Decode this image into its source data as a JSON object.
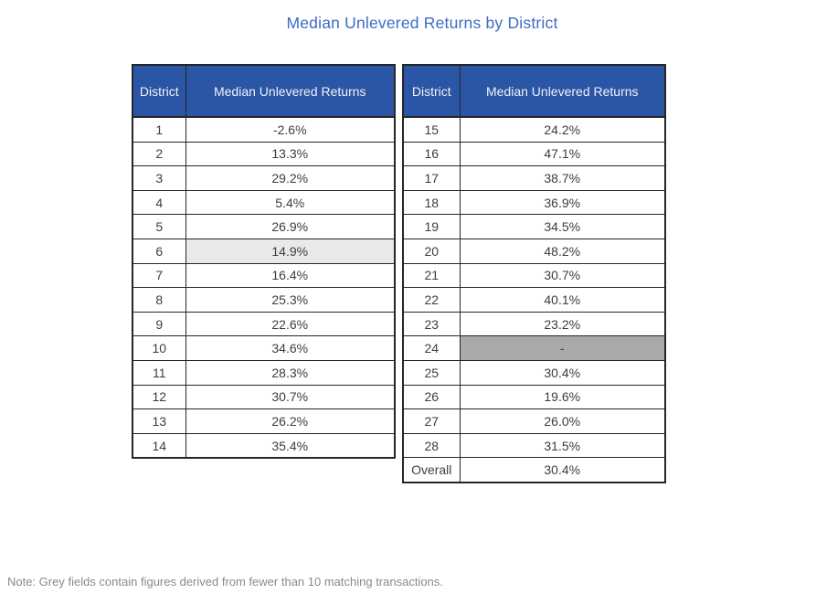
{
  "title": "Median Unlevered Returns by District",
  "note": "Note: Grey fields contain figures derived from fewer than 10 matching transactions.",
  "colors": {
    "title_text": "#3b6cc5",
    "header_bg": "#2b55a5",
    "header_text": "#eef2f8",
    "cell_text": "#3d3d3d",
    "table_border": "#262626",
    "grey_light": "#e9e9e9",
    "grey_medium": "#a9a9ac",
    "note_text": "#8a8a8a"
  },
  "tables": [
    {
      "headers": [
        "District",
        "Median Unlevered Returns"
      ],
      "rows": [
        {
          "district": "1",
          "value": "-2.6%"
        },
        {
          "district": "2",
          "value": "13.3%"
        },
        {
          "district": "3",
          "value": "29.2%"
        },
        {
          "district": "4",
          "value": "5.4%"
        },
        {
          "district": "5",
          "value": "26.9%"
        },
        {
          "district": "6",
          "value": "14.9%",
          "highlight": "light"
        },
        {
          "district": "7",
          "value": "16.4%"
        },
        {
          "district": "8",
          "value": "25.3%"
        },
        {
          "district": "9",
          "value": "22.6%"
        },
        {
          "district": "10",
          "value": "34.6%"
        },
        {
          "district": "11",
          "value": "28.3%"
        },
        {
          "district": "12",
          "value": "30.7%"
        },
        {
          "district": "13",
          "value": "26.2%"
        },
        {
          "district": "14",
          "value": "35.4%"
        }
      ]
    },
    {
      "headers": [
        "District",
        "Median Unlevered Returns"
      ],
      "rows": [
        {
          "district": "15",
          "value": "24.2%"
        },
        {
          "district": "16",
          "value": "47.1%"
        },
        {
          "district": "17",
          "value": "38.7%"
        },
        {
          "district": "18",
          "value": "36.9%"
        },
        {
          "district": "19",
          "value": "34.5%"
        },
        {
          "district": "20",
          "value": "48.2%"
        },
        {
          "district": "21",
          "value": "30.7%"
        },
        {
          "district": "22",
          "value": "40.1%"
        },
        {
          "district": "23",
          "value": "23.2%"
        },
        {
          "district": "24",
          "value": "-",
          "highlight": "medium"
        },
        {
          "district": "25",
          "value": "30.4%"
        },
        {
          "district": "26",
          "value": "19.6%"
        },
        {
          "district": "27",
          "value": "26.0%"
        },
        {
          "district": "28",
          "value": "31.5%"
        },
        {
          "district": "Overall",
          "value": "30.4%"
        }
      ]
    }
  ],
  "chart_data": {
    "type": "table",
    "title": "Median Unlevered Returns by District",
    "columns": [
      "District",
      "Median Unlevered Returns"
    ],
    "districts": [
      "1",
      "2",
      "3",
      "4",
      "5",
      "6",
      "7",
      "8",
      "9",
      "10",
      "11",
      "12",
      "13",
      "14",
      "15",
      "16",
      "17",
      "18",
      "19",
      "20",
      "21",
      "22",
      "23",
      "24",
      "25",
      "26",
      "27",
      "28",
      "Overall"
    ],
    "values_pct": [
      -2.6,
      13.3,
      29.2,
      5.4,
      26.9,
      14.9,
      16.4,
      25.3,
      22.6,
      34.6,
      28.3,
      30.7,
      26.2,
      35.4,
      24.2,
      47.1,
      38.7,
      36.9,
      34.5,
      48.2,
      30.7,
      40.1,
      23.2,
      null,
      30.4,
      19.6,
      26.0,
      31.5,
      30.4
    ],
    "grey_low_sample_districts": [
      "6",
      "24"
    ],
    "note": "Note: Grey fields contain figures derived from fewer than 10 matching transactions."
  }
}
